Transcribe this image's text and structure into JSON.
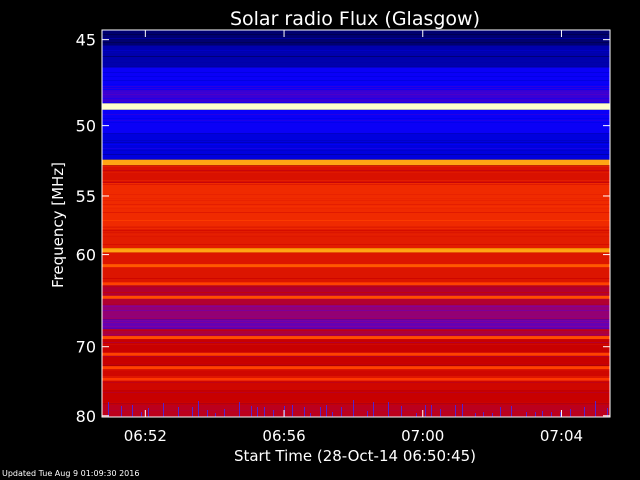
{
  "chart_data": {
    "type": "heatmap",
    "title": "Solar radio Flux (Glasgow)",
    "xlabel": "Start Time (28-Oct-14 06:50:45)",
    "ylabel": "Frequency [MHz]",
    "x_ticks": [
      "06:52",
      "06:56",
      "07:00",
      "07:04"
    ],
    "x_tick_minutes": [
      52,
      56,
      60,
      64
    ],
    "xlim_minutes": [
      50.75,
      65.4
    ],
    "y_ticks": [
      45,
      50,
      55,
      60,
      70,
      80
    ],
    "ylim": [
      44.5,
      80.2
    ],
    "y_reversed": true,
    "colormap": [
      "#000033",
      "#0000ff",
      "#8000a0",
      "#c80000",
      "#ff3a00",
      "#ff9a00",
      "#ffffcc"
    ],
    "bands": [
      {
        "from": 44.5,
        "to": 45.3,
        "level": 0.05
      },
      {
        "from": 45.3,
        "to": 46.5,
        "level": 0.1
      },
      {
        "from": 46.5,
        "to": 47.8,
        "level": 0.18
      },
      {
        "from": 47.8,
        "to": 48.6,
        "level": 0.24
      },
      {
        "from": 48.6,
        "to": 49.0,
        "level": 1.0
      },
      {
        "from": 49.0,
        "to": 50.5,
        "level": 0.18
      },
      {
        "from": 50.5,
        "to": 52.3,
        "level": 0.14
      },
      {
        "from": 52.3,
        "to": 52.7,
        "level": 0.85
      },
      {
        "from": 52.7,
        "to": 54.0,
        "level": 0.55
      },
      {
        "from": 54.0,
        "to": 57.5,
        "level": 0.62
      },
      {
        "from": 57.5,
        "to": 59.4,
        "level": 0.58
      },
      {
        "from": 59.4,
        "to": 59.8,
        "level": 0.82
      },
      {
        "from": 59.8,
        "to": 63.0,
        "level": 0.56
      },
      {
        "from": 63.0,
        "to": 65.0,
        "level": 0.45
      },
      {
        "from": 65.0,
        "to": 66.7,
        "level": 0.38
      },
      {
        "from": 66.7,
        "to": 67.8,
        "level": 0.3
      },
      {
        "from": 67.8,
        "to": 69.0,
        "level": 0.44
      },
      {
        "from": 69.0,
        "to": 72.5,
        "level": 0.5
      },
      {
        "from": 72.5,
        "to": 76.0,
        "level": 0.52
      },
      {
        "from": 76.0,
        "to": 78.0,
        "level": 0.5
      },
      {
        "from": 78.0,
        "to": 80.2,
        "level": 0.47
      }
    ],
    "lines": [
      {
        "freq": 48.8,
        "level": 1.0
      },
      {
        "freq": 52.5,
        "level": 0.85
      },
      {
        "freq": 59.6,
        "level": 0.85
      },
      {
        "freq": 61.0,
        "level": 0.72
      },
      {
        "freq": 62.8,
        "level": 0.68
      },
      {
        "freq": 64.2,
        "level": 0.7
      },
      {
        "freq": 68.8,
        "level": 0.7
      },
      {
        "freq": 70.9,
        "level": 0.68
      },
      {
        "freq": 72.7,
        "level": 0.68
      },
      {
        "freq": 74.3,
        "level": 0.66
      }
    ]
  },
  "footer": "Updated Tue Aug  9 01:09:30 2016"
}
